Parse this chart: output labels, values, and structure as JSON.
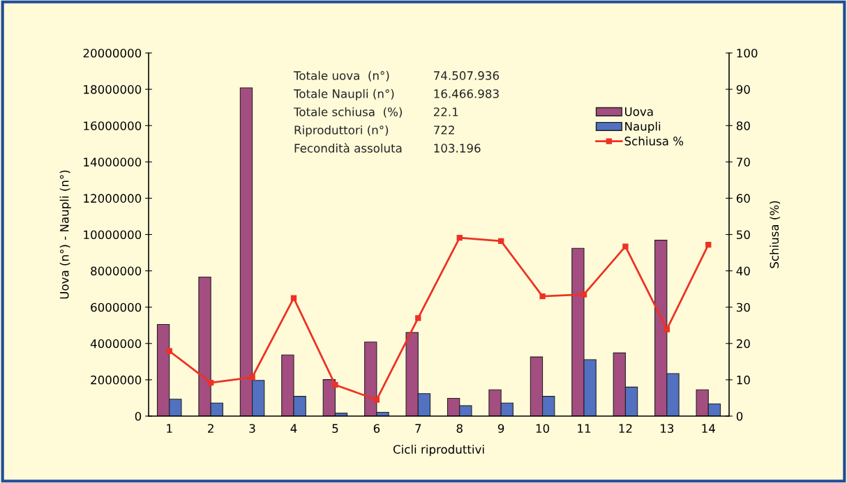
{
  "chart_data": {
    "type": "bar",
    "xlabel": "Cicli riproduttivi",
    "ylabel": "Uova (n°) - Naupli (n°)",
    "y2label": "Schiusa (%)",
    "categories": [
      "1",
      "2",
      "3",
      "4",
      "5",
      "6",
      "7",
      "8",
      "9",
      "10",
      "11",
      "12",
      "13",
      "14"
    ],
    "series": [
      {
        "name": "Uova",
        "color": "#a44d80",
        "values": [
          5050000,
          7660000,
          18080000,
          3370000,
          2010000,
          4080000,
          4600000,
          980000,
          1450000,
          3260000,
          9240000,
          3480000,
          9690000,
          1450000
        ]
      },
      {
        "name": "Naupli",
        "color": "#5271c0",
        "values": [
          930000,
          720000,
          1970000,
          1090000,
          160000,
          210000,
          1240000,
          570000,
          720000,
          1090000,
          3110000,
          1600000,
          2340000,
          670000
        ]
      },
      {
        "name": "Schiusa %",
        "type": "line",
        "axis": "y2",
        "color": "#ee3124",
        "marker": "square",
        "values": [
          17.9,
          9.2,
          10.7,
          32.5,
          8.6,
          4.5,
          27.0,
          49.1,
          48.2,
          33.0,
          33.5,
          46.7,
          23.9,
          47.2
        ]
      }
    ],
    "ylim": [
      0,
      20000000
    ],
    "yticks": [
      0,
      2000000,
      4000000,
      6000000,
      8000000,
      10000000,
      12000000,
      14000000,
      16000000,
      18000000,
      20000000
    ],
    "y2lim": [
      0,
      100
    ],
    "y2ticks": [
      0,
      10,
      20,
      30,
      40,
      50,
      60,
      70,
      80,
      90,
      100
    ],
    "grid": false,
    "legend": "top right",
    "annotations": [
      "Totale uova  (n°)",
      "74.507.936",
      "Totale Naupli (n°)",
      "16.466.983",
      "Totale schiusa  (%)",
      "22.1",
      "Riproduttori (n°)",
      "722",
      "Fecondità assoluta",
      "103.196"
    ]
  }
}
